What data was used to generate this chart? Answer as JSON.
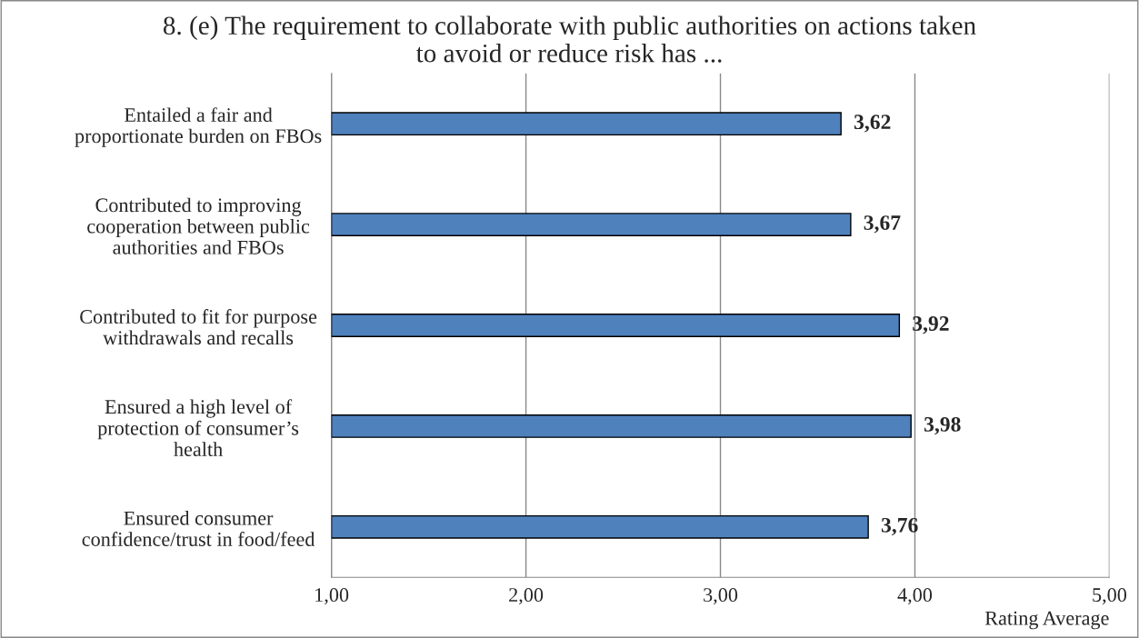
{
  "chart_data": {
    "type": "bar",
    "orientation": "horizontal",
    "title": "8. (e) The requirement to collaborate with public authorities on actions taken\nto avoid or reduce risk has ...",
    "categories": [
      "Entailed a fair and\nproportionate burden on FBOs",
      "Contributed to improving\ncooperation between public\nauthorities and FBOs",
      "Contributed to fit for purpose\nwithdrawals and recalls",
      "Ensured a high level of\nprotection of consumer’s\nhealth",
      "Ensured consumer\nconfidence/trust in food/feed"
    ],
    "values": [
      3.62,
      3.67,
      3.92,
      3.98,
      3.76
    ],
    "value_labels": [
      "3,62",
      "3,67",
      "3,92",
      "3,98",
      "3,76"
    ],
    "color": "#4f81bd",
    "xlabel": "Rating Average",
    "xlim": [
      1,
      5
    ],
    "xticks": [
      {
        "value": 1,
        "label": "1,00"
      },
      {
        "value": 2,
        "label": "2,00"
      },
      {
        "value": 3,
        "label": "3,00"
      },
      {
        "value": 4,
        "label": "4,00"
      },
      {
        "value": 5,
        "label": "5,00"
      }
    ],
    "grid": "x",
    "legend": false
  }
}
